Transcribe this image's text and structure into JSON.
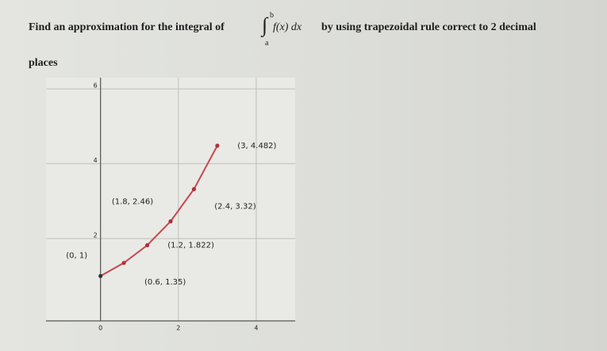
{
  "question": {
    "text_before": "Find an approximation for the integral of",
    "integral": {
      "upper": "b",
      "lower": "a",
      "integrand": "f(x) dx"
    },
    "text_after": "by using trapezoidal rule correct to 2 decimal",
    "text_last": "places"
  },
  "chart_data": {
    "type": "line",
    "x": [
      0,
      0.6,
      1.2,
      1.8,
      2.4,
      3
    ],
    "values": [
      1,
      1.35,
      1.822,
      2.46,
      3.32,
      4.482
    ],
    "value_labels": [
      "(0, 1)",
      "(0.6, 1.35)",
      "(1.2, 1.822)",
      "(1.8, 2.46)",
      "(2.4, 3.32)",
      "(3, 4.482)"
    ],
    "color": "#c8474f",
    "xlim": [
      -1.4,
      5
    ],
    "ylim": [
      -0.2,
      6.3
    ],
    "xticks": [
      0,
      2,
      4
    ],
    "yticks": [
      2,
      4,
      6
    ],
    "grid": true
  }
}
